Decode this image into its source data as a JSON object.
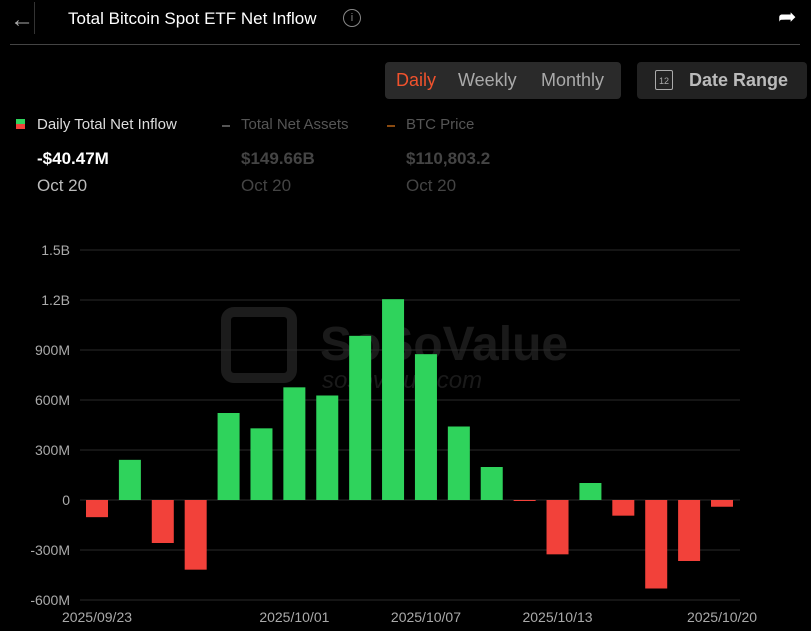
{
  "header": {
    "title": "Total Bitcoin Spot ETF Net Inflow",
    "back_icon": "arrow-left-icon",
    "info_icon": "info-icon",
    "share_icon": "share-icon"
  },
  "period_tabs": [
    {
      "label": "Daily",
      "active": true
    },
    {
      "label": "Weekly",
      "active": false
    },
    {
      "label": "Monthly",
      "active": false
    }
  ],
  "date_range": {
    "label": "Date Range",
    "icon_text": "12"
  },
  "legend": [
    {
      "label": "Daily Total Net Inflow",
      "value": "-$40.47M",
      "date": "Oct 20"
    },
    {
      "label": "Total Net Assets",
      "value": "$149.66B",
      "date": "Oct 20"
    },
    {
      "label": "BTC Price",
      "value": "$110,803.2",
      "date": "Oct 20"
    }
  ],
  "colors": {
    "positive": "#2fd35c",
    "negative": "#f2413a",
    "active_tab": "#f0522d",
    "btc_line": "#8a4a10"
  },
  "watermark": {
    "text": "SoSoValue",
    "sub": "sosovalue.com"
  },
  "chart_data": {
    "type": "bar",
    "title": "Total Bitcoin Spot ETF Net Inflow",
    "ylabel": "",
    "xlabel": "",
    "ylim": [
      -600,
      1500
    ],
    "yticks": [
      1500,
      1200,
      900,
      600,
      300,
      0,
      -300,
      -600
    ],
    "ytick_labels": [
      "1.5B",
      "1.2B",
      "900M",
      "600M",
      "300M",
      "0",
      "-300M",
      "-600M"
    ],
    "unit": "USD millions",
    "categories": [
      "2025/09/23",
      "2025/09/24",
      "2025/09/25",
      "2025/09/26",
      "2025/09/29",
      "2025/09/30",
      "2025/10/01",
      "2025/10/02",
      "2025/10/03",
      "2025/10/06",
      "2025/10/07",
      "2025/10/08",
      "2025/10/09",
      "2025/10/10",
      "2025/10/13",
      "2025/10/14",
      "2025/10/15",
      "2025/10/16",
      "2025/10/17",
      "2025/10/20"
    ],
    "values": [
      -103,
      241,
      -258,
      -418,
      522,
      430,
      676,
      627,
      985,
      1205,
      875,
      441,
      198,
      -4.5,
      -326,
      102,
      -94,
      -531,
      -366,
      -40.47
    ],
    "xtick_labels": [
      "2025/09/23",
      "2025/10/01",
      "2025/10/07",
      "2025/10/13",
      "2025/10/20"
    ],
    "xtick_indices": [
      0,
      6,
      10,
      14,
      19
    ],
    "grid": true
  }
}
